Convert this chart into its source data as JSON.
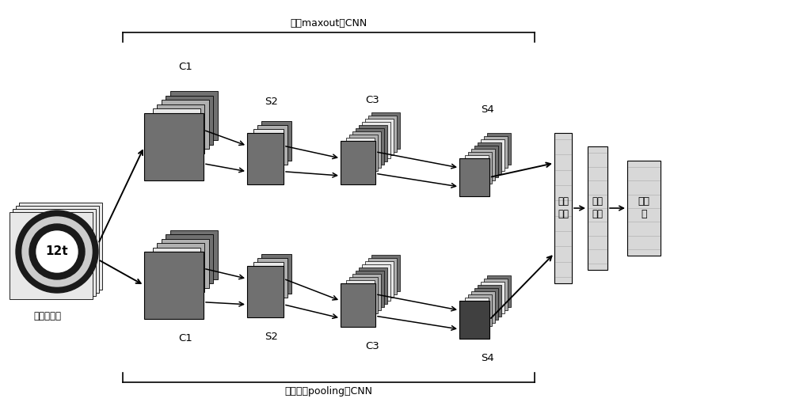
{
  "bg_color": "#ffffff",
  "top_label": "采用maxout的CNN",
  "bottom_label": "采用随机pooling的CNN",
  "input_label": "输入图片集",
  "feature_label": "特征\n向量",
  "fc_label": "全连\n接层",
  "cls_label": "分类\n器",
  "top_C1_label": "C1",
  "top_S2_label": "S2",
  "top_C3_label": "C3",
  "top_S4_label": "S4",
  "bot_C1_label": "C1",
  "bot_S2_label": "S2",
  "bot_C3_label": "C3",
  "bot_S4_label": "S4",
  "light_gray": "#e8e8e8",
  "mid_gray": "#b0b0b0",
  "dark_gray": "#707070",
  "very_dark": "#404040",
  "text_color": "#000000"
}
